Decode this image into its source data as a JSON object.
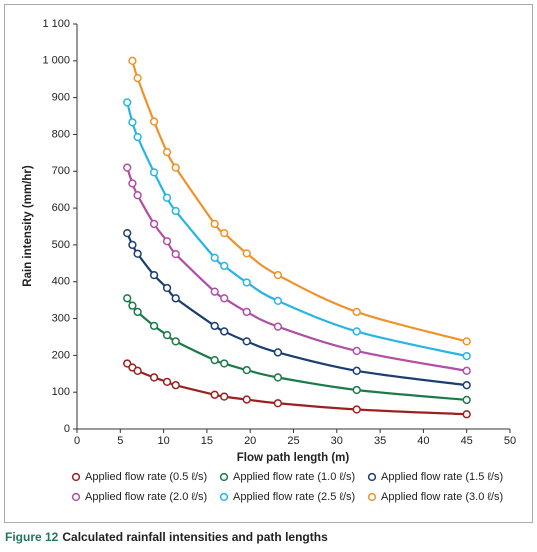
{
  "chart_data": {
    "type": "line",
    "xlabel": "Flow path length (m)",
    "ylabel": "Rain intensity (mm/hr)",
    "x": [
      5.8,
      6.4,
      7.0,
      8.9,
      10.4,
      11.4,
      15.9,
      17.0,
      19.6,
      23.2,
      32.3,
      45
    ],
    "series": [
      {
        "name": "Applied flow rate (0.5 ℓ/s)",
        "color": "#9b2020",
        "values": [
          178,
          167,
          158,
          140,
          128,
          119,
          93,
          88,
          80,
          70,
          53,
          40
        ]
      },
      {
        "name": "Applied flow rate (1.0 ℓ/s)",
        "color": "#1c7a48",
        "values": [
          355,
          335,
          318,
          280,
          255,
          238,
          187,
          178,
          160,
          140,
          106,
          79
        ]
      },
      {
        "name": "Applied flow rate (1.5 ℓ/s)",
        "color": "#1b3e70",
        "values": [
          532,
          500,
          476,
          418,
          383,
          355,
          280,
          265,
          238,
          208,
          158,
          119
        ]
      },
      {
        "name": "Applied flow rate (2.0 ℓ/s)",
        "color": "#b04fa6",
        "values": [
          710,
          667,
          635,
          557,
          510,
          475,
          373,
          355,
          318,
          278,
          212,
          158
        ]
      },
      {
        "name": "Applied flow rate (2.5 ℓ/s)",
        "color": "#2ab4e6",
        "values": [
          887,
          833,
          793,
          697,
          628,
          592,
          465,
          443,
          398,
          348,
          265,
          198
        ]
      },
      {
        "name": "Applied flow rate (3.0 ℓ/s)",
        "color": "#f0922c",
        "values": [
          null,
          1000,
          953,
          835,
          752,
          710,
          557,
          532,
          477,
          418,
          318,
          238
        ]
      }
    ],
    "xlim": [
      0,
      50
    ],
    "xticks": [
      0,
      5,
      10,
      15,
      20,
      25,
      30,
      35,
      40,
      45,
      50
    ],
    "ylim": [
      0,
      1100
    ],
    "yticks": [
      0,
      100,
      200,
      300,
      400,
      500,
      600,
      700,
      800,
      900,
      {
        "value": 1000,
        "label": "1 000"
      },
      {
        "value": 1100,
        "label": "1 100"
      }
    ],
    "grid": false,
    "legend": "bottom",
    "caption_label": "Figure 12",
    "caption": "Calculated rainfall intensities and path lengths",
    "caption_label_color": "#1f7a5c"
  }
}
